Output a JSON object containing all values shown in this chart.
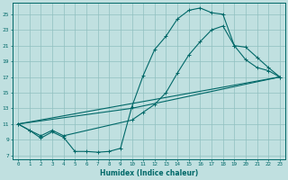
{
  "background_color": "#c0e0e0",
  "grid_color": "#90c0c0",
  "line_color": "#006868",
  "xlabel": "Humidex (Indice chaleur)",
  "ylabel_ticks": [
    7,
    9,
    11,
    13,
    15,
    17,
    19,
    21,
    23,
    25
  ],
  "xlabel_ticks": [
    0,
    1,
    2,
    3,
    4,
    5,
    6,
    7,
    8,
    9,
    10,
    11,
    12,
    13,
    14,
    15,
    16,
    17,
    18,
    19,
    20,
    21,
    22,
    23
  ],
  "xlim": [
    -0.5,
    23.5
  ],
  "ylim": [
    6.5,
    26.5
  ],
  "line1_x": [
    0,
    1,
    2,
    3,
    4,
    5,
    6,
    7,
    8,
    9,
    10,
    11,
    12,
    13,
    14,
    15,
    16,
    17,
    18,
    19,
    20,
    21,
    22,
    23
  ],
  "line1_y": [
    11.0,
    10.2,
    9.2,
    10.0,
    9.3,
    7.5,
    7.5,
    7.4,
    7.5,
    7.9,
    13.2,
    17.2,
    20.5,
    22.2,
    24.4,
    25.5,
    25.8,
    25.2,
    25.0,
    21.0,
    19.2,
    18.2,
    17.8,
    17.0
  ],
  "line2_x": [
    0,
    1,
    2,
    3,
    4,
    10,
    11,
    12,
    13,
    14,
    15,
    16,
    17,
    18,
    19,
    20,
    21,
    22,
    23
  ],
  "line2_y": [
    11.0,
    10.2,
    9.5,
    10.2,
    9.5,
    11.5,
    12.5,
    13.5,
    15.0,
    17.5,
    19.8,
    21.5,
    23.0,
    23.5,
    21.0,
    20.8,
    19.5,
    18.2,
    17.0
  ],
  "line3_x": [
    0,
    23
  ],
  "line3_y": [
    11.0,
    17.0
  ],
  "line4_x": [
    0,
    10,
    23
  ],
  "line4_y": [
    11.0,
    13.0,
    17.0
  ]
}
